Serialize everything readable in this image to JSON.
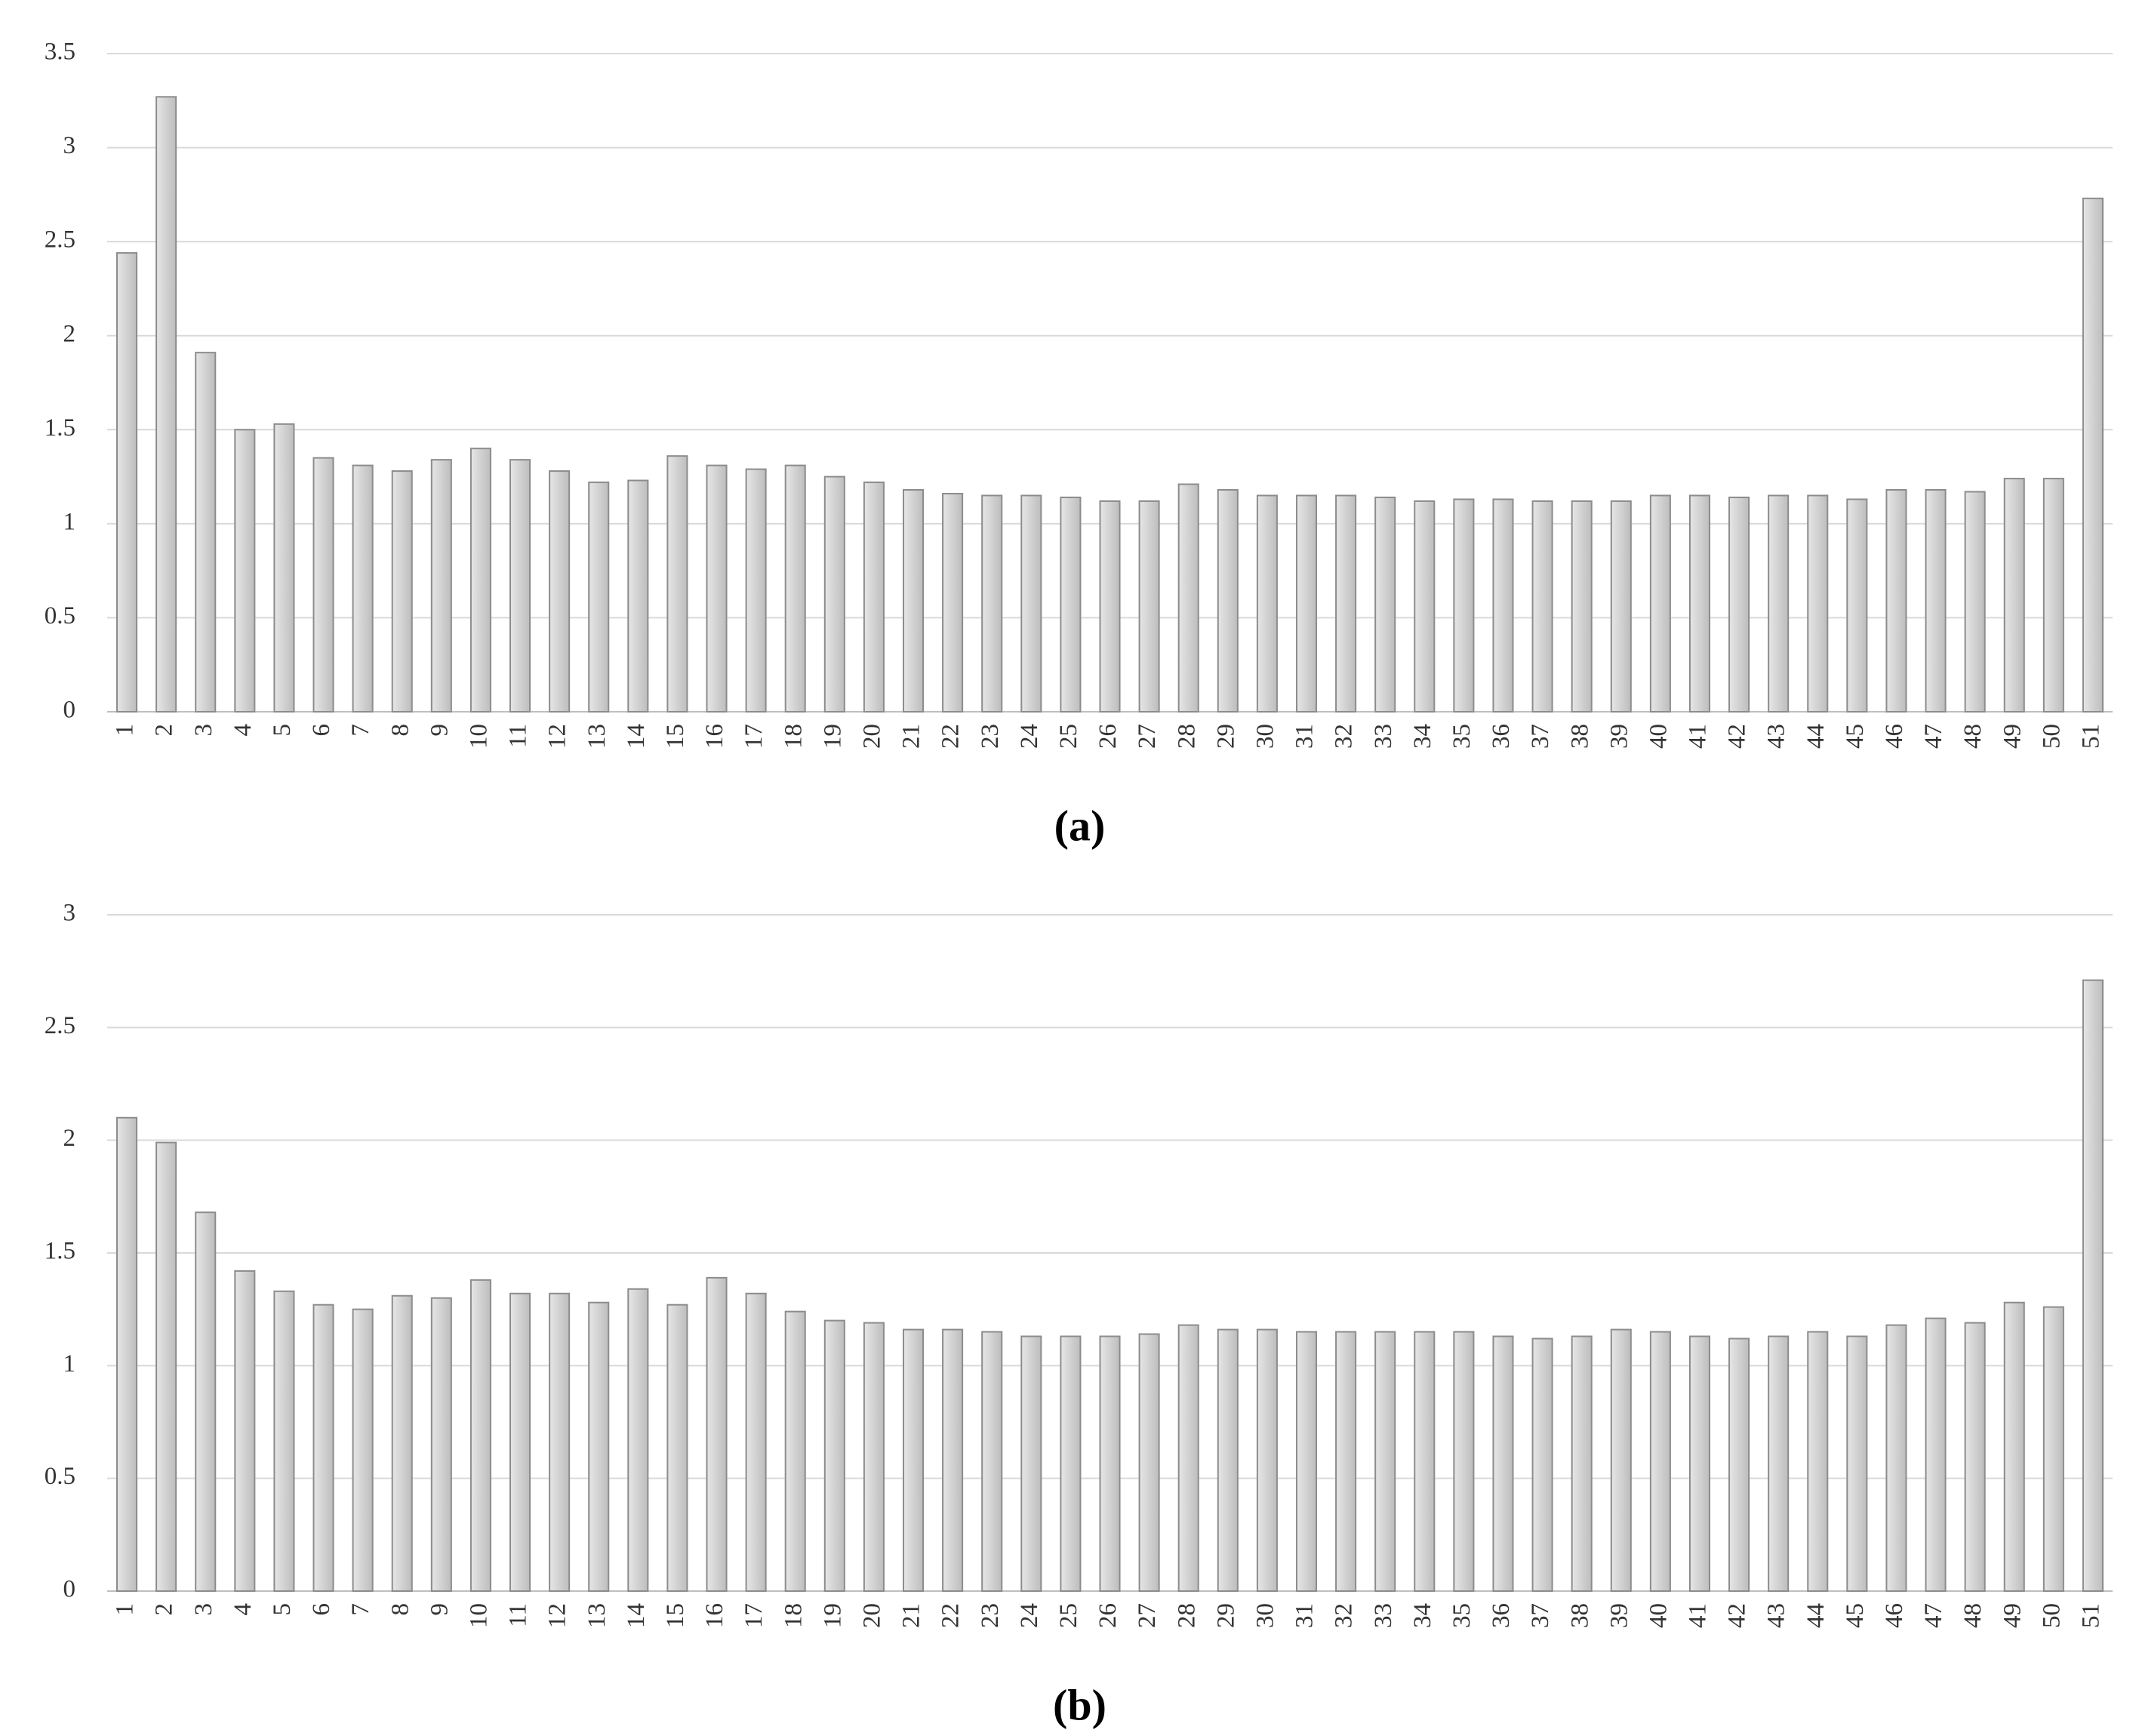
{
  "chart_data": [
    {
      "type": "bar",
      "title": "(a)",
      "categories": [
        "1",
        "2",
        "3",
        "4",
        "5",
        "6",
        "7",
        "8",
        "9",
        "10",
        "11",
        "12",
        "13",
        "14",
        "15",
        "16",
        "17",
        "18",
        "19",
        "20",
        "21",
        "22",
        "23",
        "24",
        "25",
        "26",
        "27",
        "28",
        "29",
        "30",
        "31",
        "32",
        "33",
        "34",
        "35",
        "36",
        "37",
        "38",
        "39",
        "40",
        "41",
        "42",
        "43",
        "44",
        "45",
        "46",
        "47",
        "48",
        "49",
        "50",
        "51"
      ],
      "values": [
        2.44,
        3.27,
        1.91,
        1.5,
        1.53,
        1.35,
        1.31,
        1.28,
        1.34,
        1.4,
        1.34,
        1.28,
        1.22,
        1.23,
        1.36,
        1.31,
        1.29,
        1.31,
        1.25,
        1.22,
        1.18,
        1.16,
        1.15,
        1.15,
        1.14,
        1.12,
        1.12,
        1.21,
        1.18,
        1.15,
        1.15,
        1.15,
        1.14,
        1.12,
        1.13,
        1.13,
        1.12,
        1.12,
        1.12,
        1.15,
        1.15,
        1.14,
        1.15,
        1.15,
        1.13,
        1.18,
        1.18,
        1.17,
        1.24,
        1.24,
        2.73
      ],
      "color": "#d4d4d4",
      "ylim": [
        0,
        3.5
      ],
      "yticks": [
        0,
        0.5,
        1,
        1.5,
        2,
        2.5,
        3,
        3.5
      ],
      "grid": true
    },
    {
      "type": "bar",
      "title": "(b)",
      "categories": [
        "1",
        "2",
        "3",
        "4",
        "5",
        "6",
        "7",
        "8",
        "9",
        "10",
        "11",
        "12",
        "13",
        "14",
        "15",
        "16",
        "17",
        "18",
        "19",
        "20",
        "21",
        "22",
        "23",
        "24",
        "25",
        "26",
        "27",
        "28",
        "29",
        "30",
        "31",
        "32",
        "33",
        "34",
        "35",
        "36",
        "37",
        "38",
        "39",
        "40",
        "41",
        "42",
        "43",
        "44",
        "45",
        "46",
        "47",
        "48",
        "49",
        "50",
        "51"
      ],
      "values": [
        2.1,
        1.99,
        1.68,
        1.42,
        1.33,
        1.27,
        1.25,
        1.31,
        1.3,
        1.38,
        1.32,
        1.32,
        1.28,
        1.34,
        1.27,
        1.39,
        1.32,
        1.24,
        1.2,
        1.19,
        1.16,
        1.16,
        1.15,
        1.13,
        1.13,
        1.13,
        1.14,
        1.18,
        1.16,
        1.16,
        1.15,
        1.15,
        1.15,
        1.15,
        1.15,
        1.13,
        1.12,
        1.13,
        1.16,
        1.15,
        1.13,
        1.12,
        1.13,
        1.15,
        1.13,
        1.18,
        1.21,
        1.19,
        1.28,
        1.26,
        2.71
      ],
      "color": "#d4d4d4",
      "ylim": [
        0,
        3
      ],
      "yticks": [
        0,
        0.5,
        1,
        1.5,
        2,
        2.5,
        3
      ],
      "grid": true
    }
  ]
}
